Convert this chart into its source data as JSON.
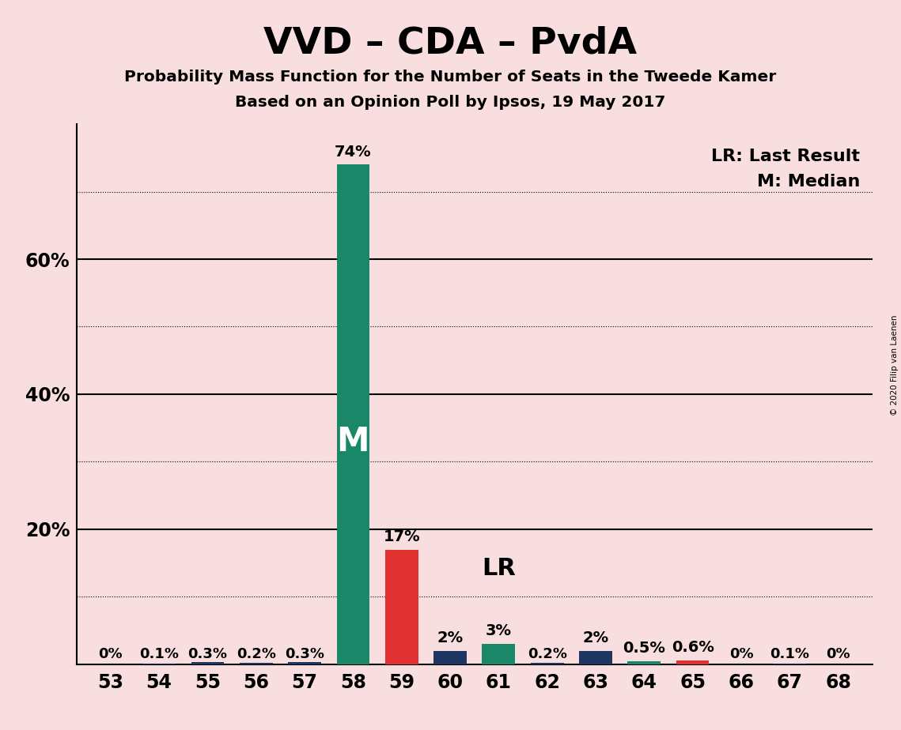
{
  "title": "VVD – CDA – PvdA",
  "subtitle1": "Probability Mass Function for the Number of Seats in the Tweede Kamer",
  "subtitle2": "Based on an Opinion Poll by Ipsos, 19 May 2017",
  "copyright": "© 2020 Filip van Laenen",
  "seats": [
    53,
    54,
    55,
    56,
    57,
    58,
    59,
    60,
    61,
    62,
    63,
    64,
    65,
    66,
    67,
    68
  ],
  "values": [
    0.0,
    0.1,
    0.3,
    0.2,
    0.3,
    74.0,
    17.0,
    2.0,
    3.0,
    0.2,
    2.0,
    0.5,
    0.6,
    0.0,
    0.1,
    0.0
  ],
  "labels": [
    "0%",
    "0.1%",
    "0.3%",
    "0.2%",
    "0.3%",
    "74%",
    "17%",
    "2%",
    "3%",
    "0.2%",
    "2%",
    "0.5%",
    "0.6%",
    "0%",
    "0.1%",
    "0%"
  ],
  "bar_colors": [
    "#1e3461",
    "#1e3461",
    "#1e3461",
    "#1e3461",
    "#1e3461",
    "#1a8868",
    "#e03030",
    "#1e3461",
    "#1a8868",
    "#1e3461",
    "#1e3461",
    "#1a8868",
    "#e03030",
    "#1e3461",
    "#1e3461",
    "#1e3461"
  ],
  "median_seat": 58,
  "lr_seat": 61,
  "background_color": "#f8dede",
  "ylim": [
    0,
    80
  ],
  "solid_lines": [
    20,
    40,
    60
  ],
  "dotted_lines": [
    10,
    30,
    50,
    70
  ],
  "legend_lr": "LR: Last Result",
  "legend_m": "M: Median"
}
